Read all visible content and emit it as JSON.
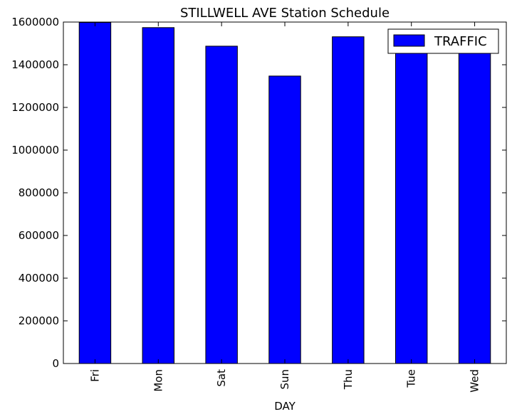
{
  "chart_data": {
    "type": "bar",
    "title": "STILLWELL AVE Station Schedule",
    "xlabel": "DAY",
    "ylabel": "",
    "categories": [
      "Fri",
      "Mon",
      "Sat",
      "Sun",
      "Thu",
      "Tue",
      "Wed"
    ],
    "series": [
      {
        "name": "TRAFFIC",
        "color": "#0000ff",
        "values": [
          1598000,
          1574000,
          1487000,
          1347000,
          1531000,
          1532000,
          1518000
        ]
      }
    ],
    "ylim": [
      0,
      1600000
    ],
    "yticks": [
      0,
      200000,
      400000,
      600000,
      800000,
      1000000,
      1200000,
      1400000,
      1600000
    ],
    "grid": false,
    "legend_position": "top-right"
  }
}
